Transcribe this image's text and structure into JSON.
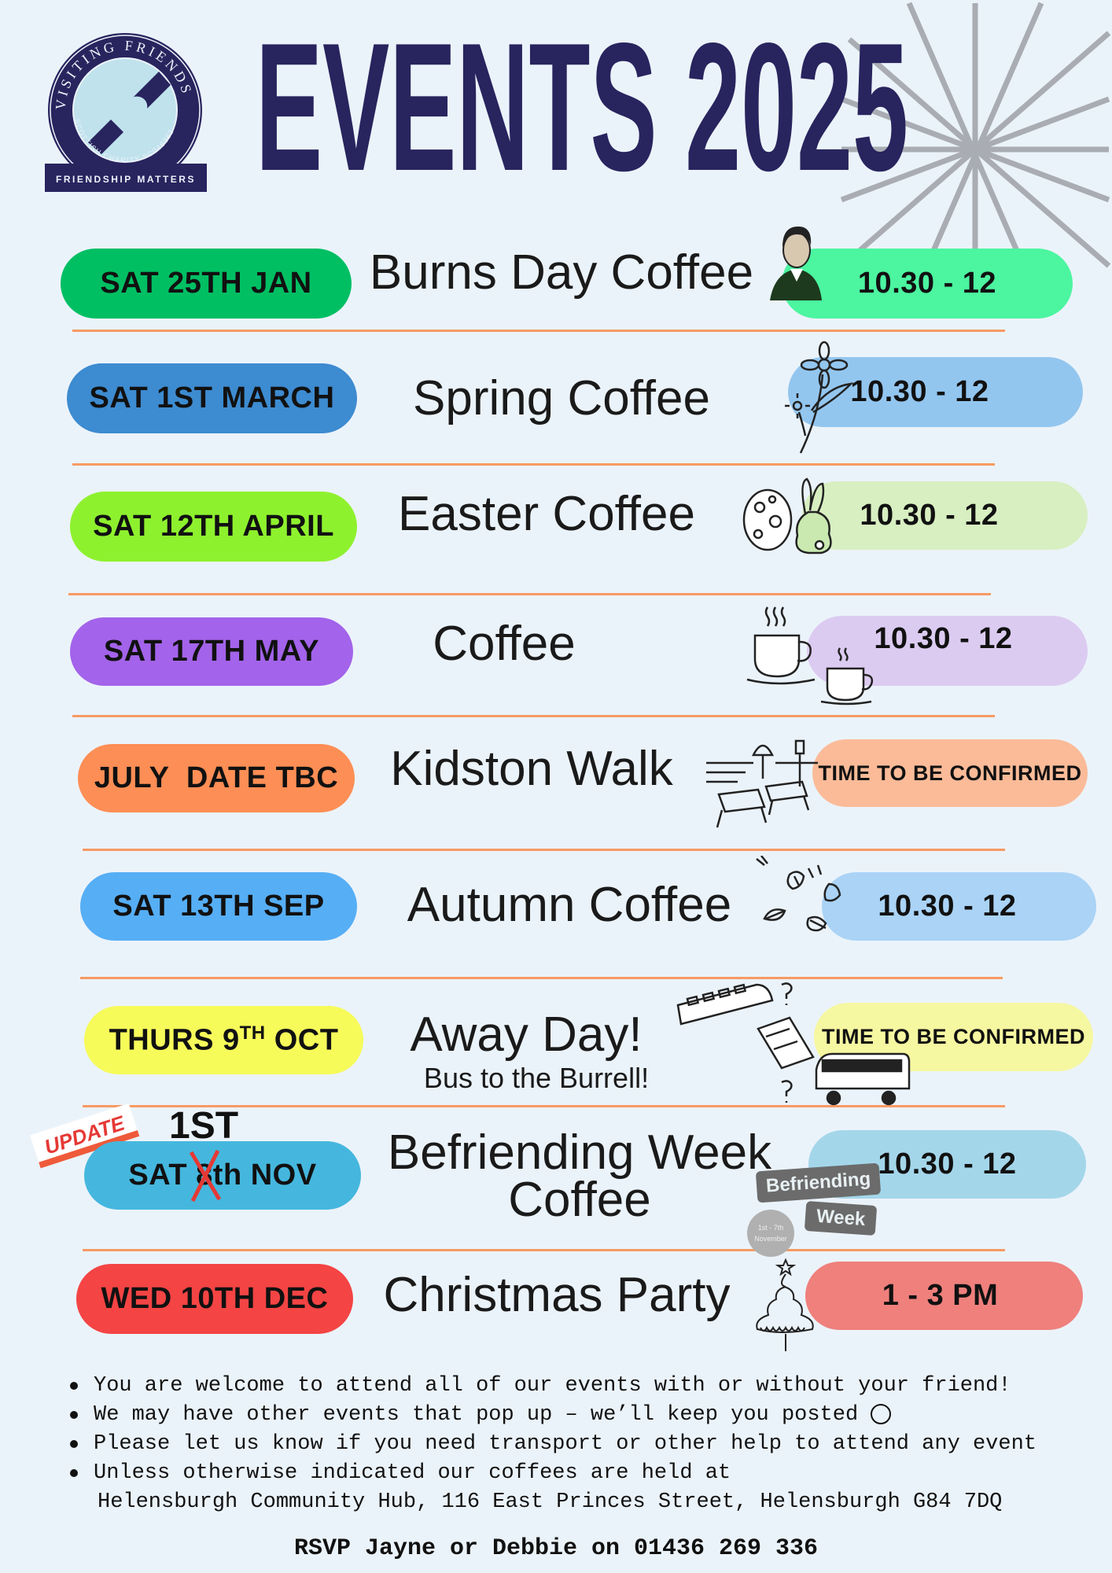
{
  "logo": {
    "ring_text": "VISITING FRIENDS",
    "charity_text": "SCOTTISH CHARITY SC048362",
    "banner_text": "FRIENDSHIP MATTERS"
  },
  "header": {
    "title": "EVENTS 2025",
    "title_color": "#28245e"
  },
  "update_tag": "UPDATE",
  "events": [
    {
      "date": "SAT 25TH JAN",
      "title": "Burns Day Coffee",
      "time": "10.30 - 12",
      "date_color": "#00bf63",
      "time_color": "#4cf5a0",
      "icon": "robert-burns-portrait-icon"
    },
    {
      "date": "SAT 1ST MARCH",
      "title": "Spring Coffee",
      "time": "10.30 - 12",
      "date_color": "#3d8bd0",
      "time_color": "#93c6ef",
      "icon": "flower-icon"
    },
    {
      "date": "SAT 12TH APRIL",
      "title": "Easter Coffee",
      "time": "10.30 - 12",
      "date_color": "#8ef12e",
      "time_color": "#d8efc1",
      "icon": "easter-egg-bunny-icon"
    },
    {
      "date": "SAT 17TH MAY",
      "title": "Coffee",
      "time": "10.30 - 12",
      "date_color": "#a363ea",
      "time_color": "#dccbf1",
      "icon": "coffee-cups-icon"
    },
    {
      "date": "JULY  DATE TBC",
      "title": "Kidston Walk",
      "time": "TIME TO BE CONFIRMED",
      "date_color": "#fd8e55",
      "time_color": "#fbbb98",
      "icon": "park-benches-icon"
    },
    {
      "date": "SAT 13TH SEP",
      "title": "Autumn Coffee",
      "time": "10.30 - 12",
      "date_color": "#56aef5",
      "time_color": "#aad3f6",
      "icon": "autumn-leaves-icon"
    },
    {
      "date_prefix": "THURS 9",
      "date_sup": "TH",
      "date_suffix": " OCT",
      "title": "Away Day!",
      "subtitle": "Bus to the Burrell!",
      "time": "TIME TO BE CONFIRMED",
      "date_color": "#f6fb5a",
      "time_color": "#f6f7a1",
      "icon": "train-map-bus-icon"
    },
    {
      "date_prefix": "SAT ",
      "date_struck": "8",
      "date_suffix": "th NOV",
      "date_update": "1ST",
      "title": "Befriending Week",
      "title_line2": "Coffee",
      "time": "10.30 - 12",
      "date_color": "#45b7de",
      "time_color": "#a4d6ea",
      "icon": "befriending-week-badge",
      "badge": {
        "line1": "Befriending",
        "line2": "Week",
        "dates_line1": "1st - 7th",
        "dates_line2": "November"
      }
    },
    {
      "date": "WED 10TH DEC",
      "title": "Christmas Party",
      "time": "1 - 3 PM",
      "date_color": "#f44444",
      "time_color": "#ef807c",
      "icon": "christmas-tree-icon"
    }
  ],
  "notes": [
    "You are welcome to attend all of our events with or without your friend!",
    "We may have other events that pop up – we’ll keep you posted",
    "Please let us know if you need transport or other help to attend any event",
    "Unless otherwise indicated our coffees are held at",
    "Helensburgh Community Hub, 116 East Princes Street, Helensburgh G84 7DQ"
  ],
  "rsvp": "RSVP Jayne or Debbie on 01436 269 336",
  "colors": {
    "background": "#ebf3fa",
    "divider": "#f79a63",
    "navy": "#28245e"
  }
}
